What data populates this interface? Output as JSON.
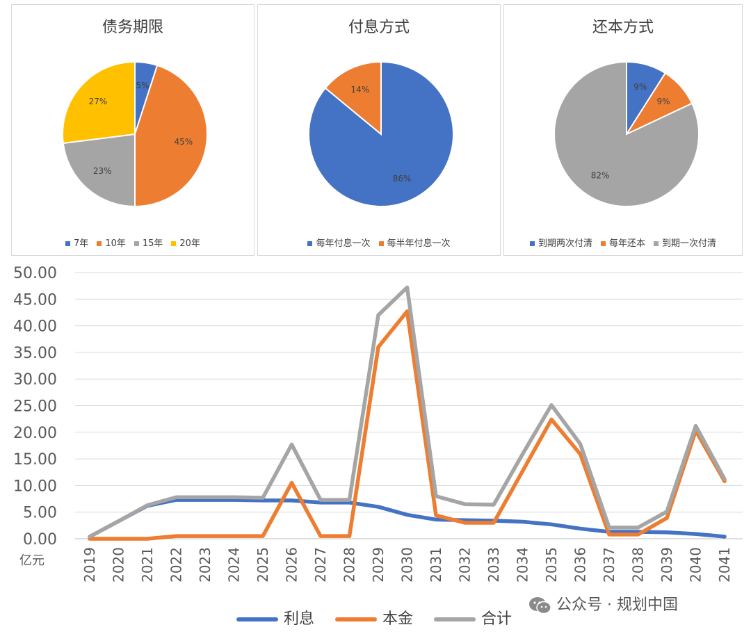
{
  "pies": [
    {
      "title": "债务期限",
      "slices": [
        {
          "label": "7年",
          "value": 5,
          "value_label": "5%",
          "color": "#4472C4"
        },
        {
          "label": "10年",
          "value": 45,
          "value_label": "45%",
          "color": "#ED7D31"
        },
        {
          "label": "15年",
          "value": 23,
          "value_label": "23%",
          "color": "#A5A5A5"
        },
        {
          "label": "20年",
          "value": 27,
          "value_label": "27%",
          "color": "#FFC000"
        }
      ]
    },
    {
      "title": "付息方式",
      "slices": [
        {
          "label": "每年付息一次",
          "value": 86,
          "value_label": "86%",
          "color": "#4472C4"
        },
        {
          "label": "每半年付息一次",
          "value": 14,
          "value_label": "14%",
          "color": "#ED7D31"
        }
      ]
    },
    {
      "title": "还本方式",
      "slices": [
        {
          "label": "到期两次付清",
          "value": 9,
          "value_label": "9%",
          "color": "#4472C4"
        },
        {
          "label": "每年还本",
          "value": 9,
          "value_label": "9%",
          "color": "#ED7D31"
        },
        {
          "label": "到期一次付清",
          "value": 82,
          "value_label": "82%",
          "color": "#A5A5A5"
        }
      ]
    }
  ],
  "chart_data": [
    {
      "type": "pie",
      "title": "债务期限",
      "categories": [
        "7年",
        "10年",
        "15年",
        "20年"
      ],
      "values": [
        5,
        45,
        23,
        27
      ],
      "legend": "bottom"
    },
    {
      "type": "pie",
      "title": "付息方式",
      "categories": [
        "每年付息一次",
        "每半年付息一次"
      ],
      "values": [
        86,
        14
      ],
      "legend": "bottom"
    },
    {
      "type": "pie",
      "title": "还本方式",
      "categories": [
        "到期两次付清",
        "每年还本",
        "到期一次付清"
      ],
      "values": [
        9,
        9,
        82
      ],
      "legend": "bottom"
    },
    {
      "type": "line",
      "title": "",
      "categories": [
        "2019",
        "2020",
        "2021",
        "2022",
        "2023",
        "2024",
        "2025",
        "2026",
        "2027",
        "2028",
        "2029",
        "2030",
        "2031",
        "2032",
        "2033",
        "2034",
        "2035",
        "2036",
        "2037",
        "2038",
        "2039",
        "2040",
        "2041"
      ],
      "series": [
        {
          "name": "利息",
          "color": "#4472C4",
          "values": [
            0.4,
            3.3,
            6.2,
            7.3,
            7.3,
            7.3,
            7.2,
            7.2,
            6.8,
            6.8,
            6.0,
            4.5,
            3.6,
            3.5,
            3.4,
            3.2,
            2.7,
            1.9,
            1.3,
            1.3,
            1.2,
            0.9,
            0.4
          ]
        },
        {
          "name": "本金",
          "color": "#ED7D31",
          "values": [
            0.0,
            0.0,
            0.0,
            0.5,
            0.5,
            0.5,
            0.5,
            10.5,
            0.5,
            0.5,
            36.0,
            42.7,
            4.4,
            3.0,
            3.0,
            12.7,
            22.4,
            15.9,
            0.8,
            0.8,
            3.9,
            20.3,
            10.8
          ]
        },
        {
          "name": "合计",
          "color": "#A5A5A5",
          "values": [
            0.4,
            3.3,
            6.3,
            7.8,
            7.8,
            7.8,
            7.7,
            17.7,
            7.3,
            7.3,
            42.0,
            47.2,
            8.0,
            6.5,
            6.4,
            15.9,
            25.1,
            17.8,
            2.1,
            2.1,
            5.1,
            21.2,
            11.2
          ]
        }
      ],
      "ylim": [
        0,
        50
      ],
      "yticks": [
        "0.00",
        "5.00",
        "10.00",
        "15.00",
        "20.00",
        "25.00",
        "30.00",
        "35.00",
        "40.00",
        "45.00",
        "50.00"
      ],
      "ylabel": "亿元",
      "grid": true,
      "legend": "bottom"
    }
  ],
  "watermark": {
    "text": "公众号 · 规划中国",
    "icon": "wechat-icon"
  }
}
